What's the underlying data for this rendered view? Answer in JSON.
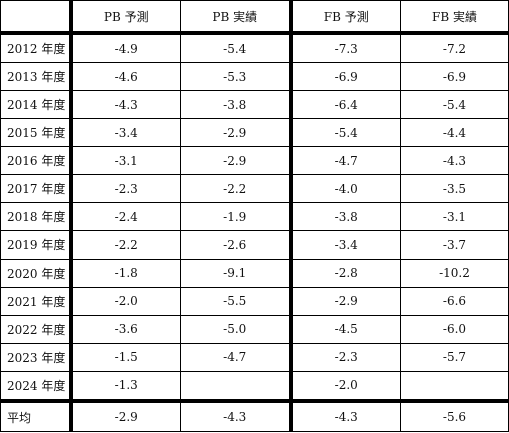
{
  "table": {
    "headers": [
      "",
      "PB 予測",
      "PB 実績",
      "FB 予測",
      "FB 実績"
    ],
    "rows": [
      {
        "year": "2012 年度",
        "pb_forecast": "-4.9",
        "pb_actual": "-5.4",
        "fb_forecast": "-7.3",
        "fb_actual": "-7.2"
      },
      {
        "year": "2013 年度",
        "pb_forecast": "-4.6",
        "pb_actual": "-5.3",
        "fb_forecast": "-6.9",
        "fb_actual": "-6.9"
      },
      {
        "year": "2014 年度",
        "pb_forecast": "-4.3",
        "pb_actual": "-3.8",
        "fb_forecast": "-6.4",
        "fb_actual": "-5.4"
      },
      {
        "year": "2015 年度",
        "pb_forecast": "-3.4",
        "pb_actual": "-2.9",
        "fb_forecast": "-5.4",
        "fb_actual": "-4.4"
      },
      {
        "year": "2016 年度",
        "pb_forecast": "-3.1",
        "pb_actual": "-2.9",
        "fb_forecast": "-4.7",
        "fb_actual": "-4.3"
      },
      {
        "year": "2017 年度",
        "pb_forecast": "-2.3",
        "pb_actual": "-2.2",
        "fb_forecast": "-4.0",
        "fb_actual": "-3.5"
      },
      {
        "year": "2018 年度",
        "pb_forecast": "-2.4",
        "pb_actual": "-1.9",
        "fb_forecast": "-3.8",
        "fb_actual": "-3.1"
      },
      {
        "year": "2019 年度",
        "pb_forecast": "-2.2",
        "pb_actual": "-2.6",
        "fb_forecast": "-3.4",
        "fb_actual": "-3.7"
      },
      {
        "year": "2020 年度",
        "pb_forecast": "-1.8",
        "pb_actual": "-9.1",
        "fb_forecast": "-2.8",
        "fb_actual": "-10.2"
      },
      {
        "year": "2021 年度",
        "pb_forecast": "-2.0",
        "pb_actual": "-5.5",
        "fb_forecast": "-2.9",
        "fb_actual": "-6.6"
      },
      {
        "year": "2022 年度",
        "pb_forecast": "-3.6",
        "pb_actual": "-5.0",
        "fb_forecast": "-4.5",
        "fb_actual": "-6.0"
      },
      {
        "year": "2023 年度",
        "pb_forecast": "-1.5",
        "pb_actual": "-4.7",
        "fb_forecast": "-2.3",
        "fb_actual": "-5.7"
      },
      {
        "year": "2024 年度",
        "pb_forecast": "-1.3",
        "pb_actual": "",
        "fb_forecast": "-2.0",
        "fb_actual": ""
      }
    ],
    "average": {
      "label": "平均",
      "pb_forecast": "-2.9",
      "pb_actual": "-4.3",
      "fb_forecast": "-4.3",
      "fb_actual": "-5.6"
    }
  }
}
